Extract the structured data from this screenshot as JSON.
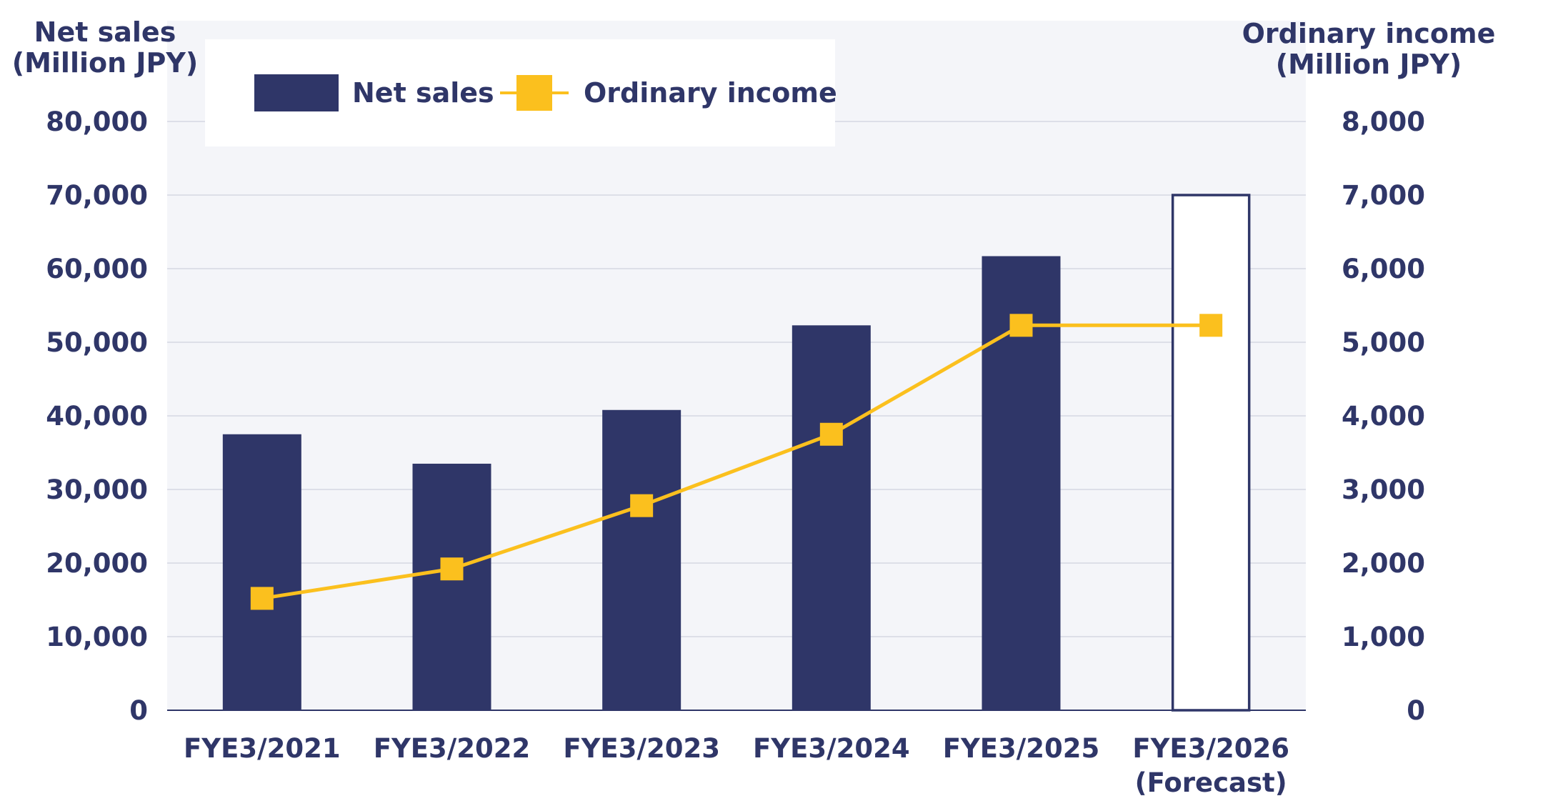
{
  "colors": {
    "bar": "#2f3668",
    "line": "#fbc01e",
    "text": "#2f3668",
    "plot_bg": "#f4f5f9",
    "grid": "#d5d8e2"
  },
  "chart_data": {
    "type": "bar+line",
    "categories": [
      [
        "FYE3/2021"
      ],
      [
        "FYE3/2022"
      ],
      [
        "FYE3/2023"
      ],
      [
        "FYE3/2024"
      ],
      [
        "FYE3/2025"
      ],
      [
        "FYE3/2026",
        "(Forecast)"
      ]
    ],
    "y_left": {
      "title": [
        "Net sales",
        "(Million JPY)"
      ],
      "range": [
        0,
        80000
      ],
      "ticks": [
        "0",
        "10,000",
        "20,000",
        "30,000",
        "40,000",
        "50,000",
        "60,000",
        "70,000",
        "80,000"
      ]
    },
    "y_right": {
      "title": [
        "Ordinary income",
        "(Million JPY)"
      ],
      "range": [
        0,
        8000
      ],
      "ticks": [
        "0",
        "1,000",
        "2,000",
        "3,000",
        "4,000",
        "5,000",
        "6,000",
        "7,000",
        "8,000"
      ]
    },
    "series": [
      {
        "name": "Net sales",
        "type": "bar",
        "axis": "left",
        "values": [
          37500,
          33500,
          40800,
          52300,
          61700,
          70000
        ],
        "forecast_index": 5
      },
      {
        "name": "Ordinary income",
        "type": "line",
        "axis": "right",
        "values": [
          1520,
          1920,
          2780,
          3750,
          5230,
          5230
        ]
      }
    ],
    "legend": "top-left",
    "grid": true
  }
}
